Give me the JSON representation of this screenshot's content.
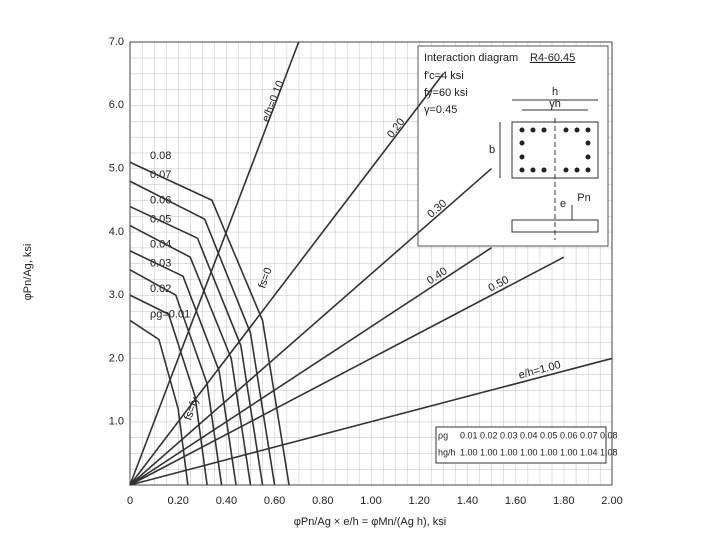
{
  "chart_data": {
    "type": "line",
    "title": "Interaction diagram",
    "diagram_id": "R4-60.45",
    "params": [
      "f'c=4 ksi",
      "fy=60 ksi",
      "γ=0.45"
    ],
    "y_label": "φPn/Ag, ksi",
    "x_label": "φPn/Ag × e/h = φMn/(Ag h), ksi",
    "xlim": [
      0,
      2
    ],
    "ylim": [
      0,
      7
    ],
    "xticks": [
      0,
      {
        "value": 0.2,
        "label": "0.20"
      },
      {
        "value": 0.4,
        "label": "0.40"
      },
      {
        "value": 0.6,
        "label": "0.60"
      },
      {
        "value": 0.8,
        "label": "0.80"
      },
      {
        "value": 1,
        "label": "1.00"
      },
      {
        "value": 1.2,
        "label": "1.20"
      },
      {
        "value": 1.4,
        "label": "1.40"
      },
      {
        "value": 1.6,
        "label": "1.60"
      },
      {
        "value": 1.8,
        "label": "1.80"
      },
      {
        "value": 2,
        "label": "2.00"
      }
    ],
    "yticks": [
      {
        "value": 1,
        "label": "1.0"
      },
      {
        "value": 2,
        "label": "2.0"
      },
      {
        "value": 3,
        "label": "3.0"
      },
      {
        "value": 4,
        "label": "4.0"
      },
      {
        "value": 5,
        "label": "5.0"
      },
      {
        "value": 6,
        "label": "6.0"
      },
      {
        "value": 7,
        "label": "7.0"
      }
    ],
    "grid": true,
    "series": [
      {
        "name": "e/h=0.10",
        "color": "#333333",
        "x": [
          0,
          0.7
        ],
        "values": [
          0,
          7.0
        ]
      },
      {
        "name": "0.20",
        "color": "#333333",
        "x": [
          0,
          1.3
        ],
        "values": [
          0,
          6.5
        ]
      },
      {
        "name": "0.30",
        "color": "#333333",
        "x": [
          0,
          1.5
        ],
        "values": [
          0,
          5.0
        ]
      },
      {
        "name": "0.40",
        "color": "#333333",
        "x": [
          0,
          1.5
        ],
        "values": [
          0,
          3.75
        ]
      },
      {
        "name": "0.50",
        "color": "#333333",
        "x": [
          0,
          1.8
        ],
        "values": [
          0,
          3.6
        ]
      },
      {
        "name": "e/h=1.00",
        "color": "#333333",
        "x": [
          0,
          2.0
        ],
        "values": [
          0,
          2.0
        ]
      }
    ],
    "curves": [
      {
        "name": "ρg=0.01",
        "color": "#333333",
        "x": [
          0,
          0.12,
          0.2,
          0.24
        ],
        "values": [
          2.6,
          2.3,
          1.2,
          0
        ]
      },
      {
        "name": "0.02",
        "color": "#333333",
        "x": [
          0,
          0.16,
          0.27,
          0.32
        ],
        "values": [
          3.0,
          2.7,
          1.4,
          0
        ]
      },
      {
        "name": "0.03",
        "color": "#333333",
        "x": [
          0,
          0.19,
          0.32,
          0.38
        ],
        "values": [
          3.4,
          3.0,
          1.6,
          0
        ]
      },
      {
        "name": "0.04",
        "color": "#333333",
        "x": [
          0,
          0.22,
          0.37,
          0.44
        ],
        "values": [
          3.7,
          3.3,
          1.8,
          0
        ]
      },
      {
        "name": "0.05",
        "color": "#333333",
        "x": [
          0,
          0.25,
          0.42,
          0.5
        ],
        "values": [
          4.1,
          3.6,
          2.0,
          0
        ]
      },
      {
        "name": "0.06",
        "color": "#333333",
        "x": [
          0,
          0.28,
          0.46,
          0.55
        ],
        "values": [
          4.4,
          3.9,
          2.2,
          0
        ]
      },
      {
        "name": "0.07",
        "color": "#333333",
        "x": [
          0,
          0.31,
          0.5,
          0.6
        ],
        "values": [
          4.8,
          4.2,
          2.4,
          0
        ]
      },
      {
        "name": "0.08",
        "color": "#333333",
        "x": [
          0,
          0.34,
          0.55,
          0.66
        ],
        "values": [
          5.1,
          4.5,
          2.6,
          0
        ]
      }
    ],
    "annotations": [
      "fs=0",
      "fs=fy"
    ],
    "table": {
      "rows": [
        [
          "ρg",
          "0.01",
          "0.02",
          "0.03",
          "0.04",
          "0.05",
          "0.06",
          "0.07",
          "0.08"
        ],
        [
          "hg/h",
          "1.00",
          "1.00",
          "1.00",
          "1.00",
          "1.00",
          "1.00",
          "1.04",
          "1.08"
        ]
      ]
    },
    "inset": {
      "labels": [
        "h",
        "γh",
        "b",
        "e",
        "Pn"
      ]
    }
  }
}
